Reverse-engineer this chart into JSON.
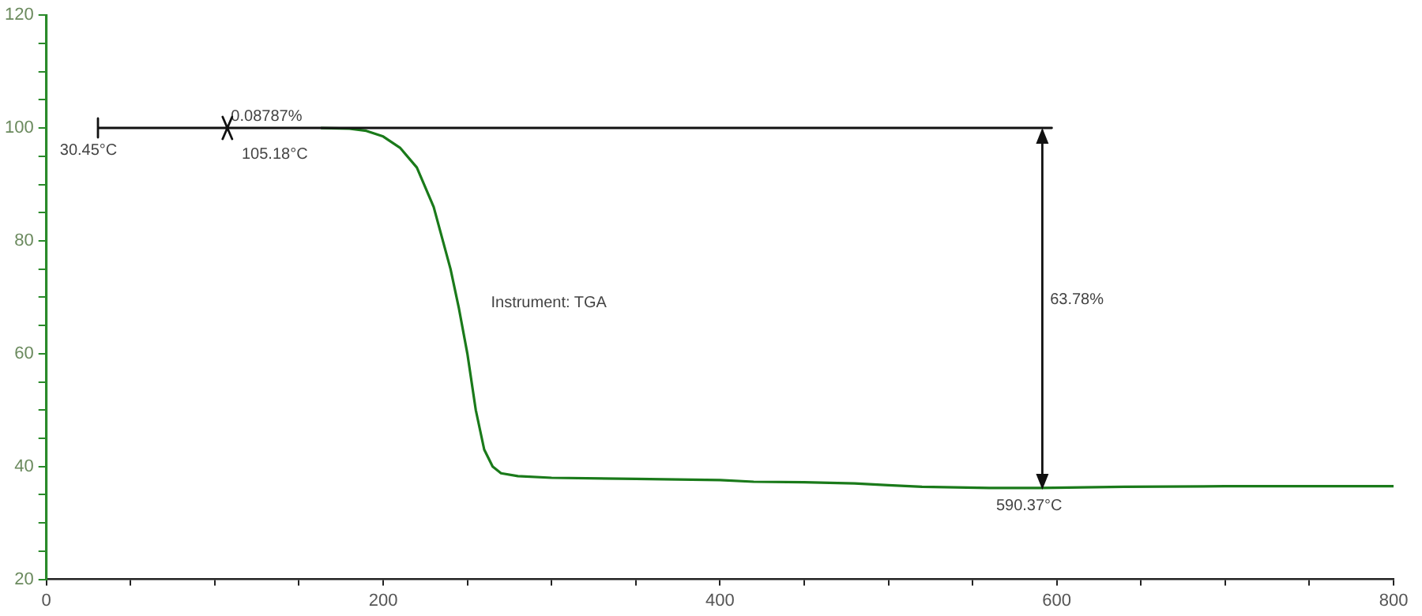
{
  "chart_data": {
    "type": "line",
    "x": [
      163,
      180,
      190,
      200,
      210,
      220,
      230,
      240,
      245,
      250,
      255,
      260,
      265,
      270,
      280,
      300,
      350,
      400,
      420,
      450,
      480,
      500,
      520,
      560,
      590,
      640,
      700,
      800
    ],
    "series": [
      {
        "color": "#1a7a1a",
        "values": [
          100,
          99.9,
          99.5,
          98.5,
          96.5,
          93,
          86,
          75,
          68,
          60,
          50,
          43,
          40,
          38.8,
          38.3,
          38,
          37.8,
          37.6,
          37.3,
          37.2,
          37,
          36.7,
          36.4,
          36.2,
          36.2,
          36.4,
          36.5,
          36.5
        ]
      }
    ],
    "xlim": [
      0,
      800
    ],
    "xticks": [
      0,
      {
        "value": 50,
        "label": null
      },
      {
        "value": 100,
        "label": null
      },
      {
        "value": 150,
        "label": null
      },
      200,
      {
        "value": 250,
        "label": null
      },
      {
        "value": 300,
        "label": null
      },
      {
        "value": 350,
        "label": null
      },
      400,
      {
        "value": 450,
        "label": null
      },
      {
        "value": 500,
        "label": null
      },
      {
        "value": 550,
        "label": null
      },
      600,
      {
        "value": 650,
        "label": null
      },
      {
        "value": 700,
        "label": null
      },
      {
        "value": 750,
        "label": null
      },
      800
    ],
    "ylim": [
      20,
      120
    ],
    "yticks": [
      20,
      {
        "value": 25,
        "label": null
      },
      {
        "value": 30,
        "label": null
      },
      {
        "value": 35,
        "label": null
      },
      40,
      {
        "value": 45,
        "label": null
      },
      {
        "value": 50,
        "label": null
      },
      {
        "value": 55,
        "label": null
      },
      60,
      {
        "value": 65,
        "label": null
      },
      {
        "value": 70,
        "label": null
      },
      {
        "value": 75,
        "label": null
      },
      80,
      {
        "value": 85,
        "label": null
      },
      {
        "value": 90,
        "label": null
      },
      {
        "value": 95,
        "label": null
      },
      100,
      {
        "value": 105,
        "label": null
      },
      {
        "value": 110,
        "label": null
      },
      {
        "value": 115,
        "label": null
      },
      120
    ],
    "marker": "none",
    "annotations": [
      "30.45°C",
      "0.08787%",
      "105.18°C",
      "63.78%",
      "590.37°C",
      "Instrument: TGA"
    ]
  }
}
